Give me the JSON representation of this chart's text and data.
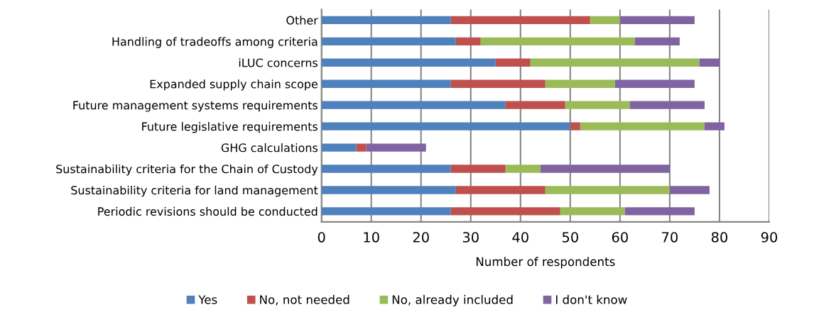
{
  "chart_data": {
    "type": "bar",
    "orientation": "horizontal",
    "stacked": true,
    "xlabel": "Number of respondents",
    "categories": [
      "Other",
      "Handling of tradeoffs among criteria",
      "iLUC concerns",
      "Expanded supply chain scope",
      "Future management systems requirements",
      "Future legislative requirements",
      "GHG calculations",
      "Sustainability criteria for the Chain of Custody",
      "Sustainability criteria for land management",
      "Periodic revisions should be conducted"
    ],
    "series": [
      {
        "name": "Yes",
        "color": "#4f81bd",
        "values": [
          26,
          27,
          35,
          26,
          37,
          50,
          7,
          26,
          27,
          26
        ]
      },
      {
        "name": "No, not needed",
        "color": "#c0504d",
        "values": [
          28,
          5,
          7,
          19,
          12,
          2,
          2,
          11,
          18,
          22
        ]
      },
      {
        "name": "No, already included",
        "color": "#9bbb59",
        "values": [
          6,
          31,
          34,
          14,
          13,
          25,
          0,
          7,
          25,
          13
        ]
      },
      {
        "name": "I don't know",
        "color": "#8064a2",
        "values": [
          15,
          9,
          4,
          16,
          15,
          4,
          12,
          26,
          8,
          14
        ]
      }
    ],
    "xlim": [
      0,
      90
    ],
    "xticks": [
      0,
      10,
      20,
      30,
      40,
      50,
      60,
      70,
      80,
      90
    ],
    "grid": "x",
    "legend": "bottom"
  }
}
